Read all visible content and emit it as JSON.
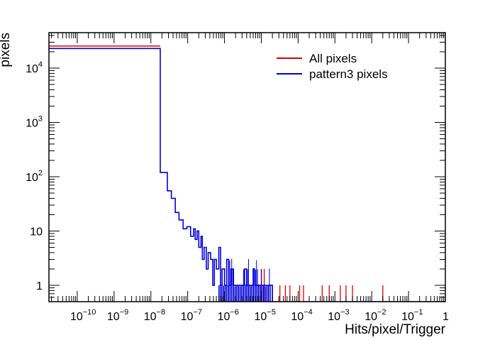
{
  "chart_data": {
    "type": "histogram",
    "title": "",
    "xlabel": "Hits/pixel/Trigger",
    "ylabel": "pixels",
    "xscale": "log",
    "yscale": "log",
    "xlim": [
      1.7e-11,
      1
    ],
    "ylim": [
      0.5,
      45000
    ],
    "grid": false,
    "legend_position": "top-right",
    "x_tick_labels": [
      {
        "base": "10",
        "exp": "−10",
        "value": 1e-10
      },
      {
        "base": "10",
        "exp": "−9",
        "value": 1e-09
      },
      {
        "base": "10",
        "exp": "−8",
        "value": 1e-08
      },
      {
        "base": "10",
        "exp": "−7",
        "value": 1e-07
      },
      {
        "base": "10",
        "exp": "−6",
        "value": 1e-06
      },
      {
        "base": "10",
        "exp": "−5",
        "value": 1e-05
      },
      {
        "base": "10",
        "exp": "−4",
        "value": 0.0001
      },
      {
        "base": "10",
        "exp": "−3",
        "value": 0.001
      },
      {
        "base": "10",
        "exp": "−2",
        "value": 0.01
      },
      {
        "base": "10",
        "exp": "−1",
        "value": 0.1
      },
      {
        "base": "1",
        "exp": "",
        "value": 1
      }
    ],
    "y_tick_labels": [
      {
        "base": "1",
        "exp": "",
        "value": 1
      },
      {
        "base": "10",
        "exp": "",
        "value": 10
      },
      {
        "base": "10",
        "exp": "2",
        "value": 100
      },
      {
        "base": "10",
        "exp": "3",
        "value": 1000
      },
      {
        "base": "10",
        "exp": "4",
        "value": 10000
      }
    ],
    "series": [
      {
        "name": "All pixels",
        "color": "#dd0000",
        "step_points": [
          [
            1.7e-11,
            25500
          ],
          [
            1.8e-08,
            25500
          ]
        ],
        "spikes": [
          [
            1e-05,
            2
          ],
          [
            1.2e-05,
            2
          ],
          [
            2e-05,
            1
          ],
          [
            3.2e-05,
            1
          ],
          [
            4.5e-05,
            1
          ],
          [
            6e-05,
            1
          ],
          [
            0.00011,
            1
          ],
          [
            0.00014,
            1
          ],
          [
            0.00045,
            1
          ],
          [
            0.0007,
            1
          ],
          [
            0.0014,
            1
          ],
          [
            0.002,
            1
          ],
          [
            0.003,
            1
          ],
          [
            0.02,
            1
          ]
        ]
      },
      {
        "name": "pattern3 pixels",
        "color": "#0000dd",
        "step_points": [
          [
            1.7e-11,
            23000
          ],
          [
            1.8e-08,
            23000
          ],
          [
            1.8e-08,
            120
          ],
          [
            2.8e-08,
            120
          ],
          [
            2.8e-08,
            55
          ],
          [
            3.6e-08,
            55
          ],
          [
            3.6e-08,
            40
          ],
          [
            4.6e-08,
            40
          ],
          [
            4.6e-08,
            22
          ],
          [
            5.8e-08,
            22
          ],
          [
            5.8e-08,
            16
          ],
          [
            7.5e-08,
            16
          ],
          [
            7.5e-08,
            11
          ],
          [
            9.5e-08,
            11
          ],
          [
            9.5e-08,
            12
          ],
          [
            1.2e-07,
            12
          ],
          [
            1.2e-07,
            8
          ],
          [
            1.45e-07,
            8
          ],
          [
            1.45e-07,
            11
          ],
          [
            1.6e-07,
            11
          ],
          [
            1.6e-07,
            7
          ],
          [
            1.8e-07,
            7
          ],
          [
            1.8e-07,
            10
          ],
          [
            2e-07,
            10
          ],
          [
            2e-07,
            5
          ],
          [
            2.3e-07,
            5
          ],
          [
            2.3e-07,
            8
          ],
          [
            2.5e-07,
            8
          ],
          [
            2.5e-07,
            3
          ],
          [
            2.8e-07,
            3
          ],
          [
            2.8e-07,
            5
          ],
          [
            3.2e-07,
            5
          ],
          [
            3.2e-07,
            2
          ],
          [
            3.6e-07,
            2
          ],
          [
            3.6e-07,
            4
          ],
          [
            4.2e-07,
            4
          ],
          [
            4.2e-07,
            3
          ],
          [
            4.8e-07,
            3
          ],
          [
            4.8e-07,
            1
          ],
          [
            5.3e-07,
            1
          ],
          [
            5.3e-07,
            3
          ],
          [
            6e-07,
            3
          ],
          [
            6e-07,
            2
          ],
          [
            7e-07,
            2
          ],
          [
            7e-07,
            5
          ],
          [
            7.8e-07,
            5
          ],
          [
            7.8e-07,
            1
          ],
          [
            8.6e-07,
            1
          ],
          [
            8.6e-07,
            2
          ],
          [
            1e-06,
            2
          ],
          [
            1e-06,
            1
          ],
          [
            1.15e-06,
            1
          ],
          [
            1.15e-06,
            3
          ],
          [
            1.3e-06,
            3
          ],
          [
            1.3e-06,
            1
          ],
          [
            1.5e-06,
            1
          ],
          [
            1.5e-06,
            2
          ],
          [
            1.7e-06,
            2
          ],
          [
            1.7e-06,
            1
          ],
          [
            3.5e-06,
            1
          ],
          [
            3.5e-06,
            2
          ],
          [
            4e-06,
            2
          ],
          [
            4e-06,
            1
          ],
          [
            6e-06,
            1
          ],
          [
            6e-06,
            2
          ],
          [
            6.6e-06,
            2
          ],
          [
            6.6e-06,
            1
          ],
          [
            2e-05,
            1
          ],
          [
            2e-05,
            0.5
          ],
          [
            1.0,
            0.5
          ]
        ],
        "dense_band": [
          7e-07,
          1.8e-05
        ]
      }
    ]
  }
}
